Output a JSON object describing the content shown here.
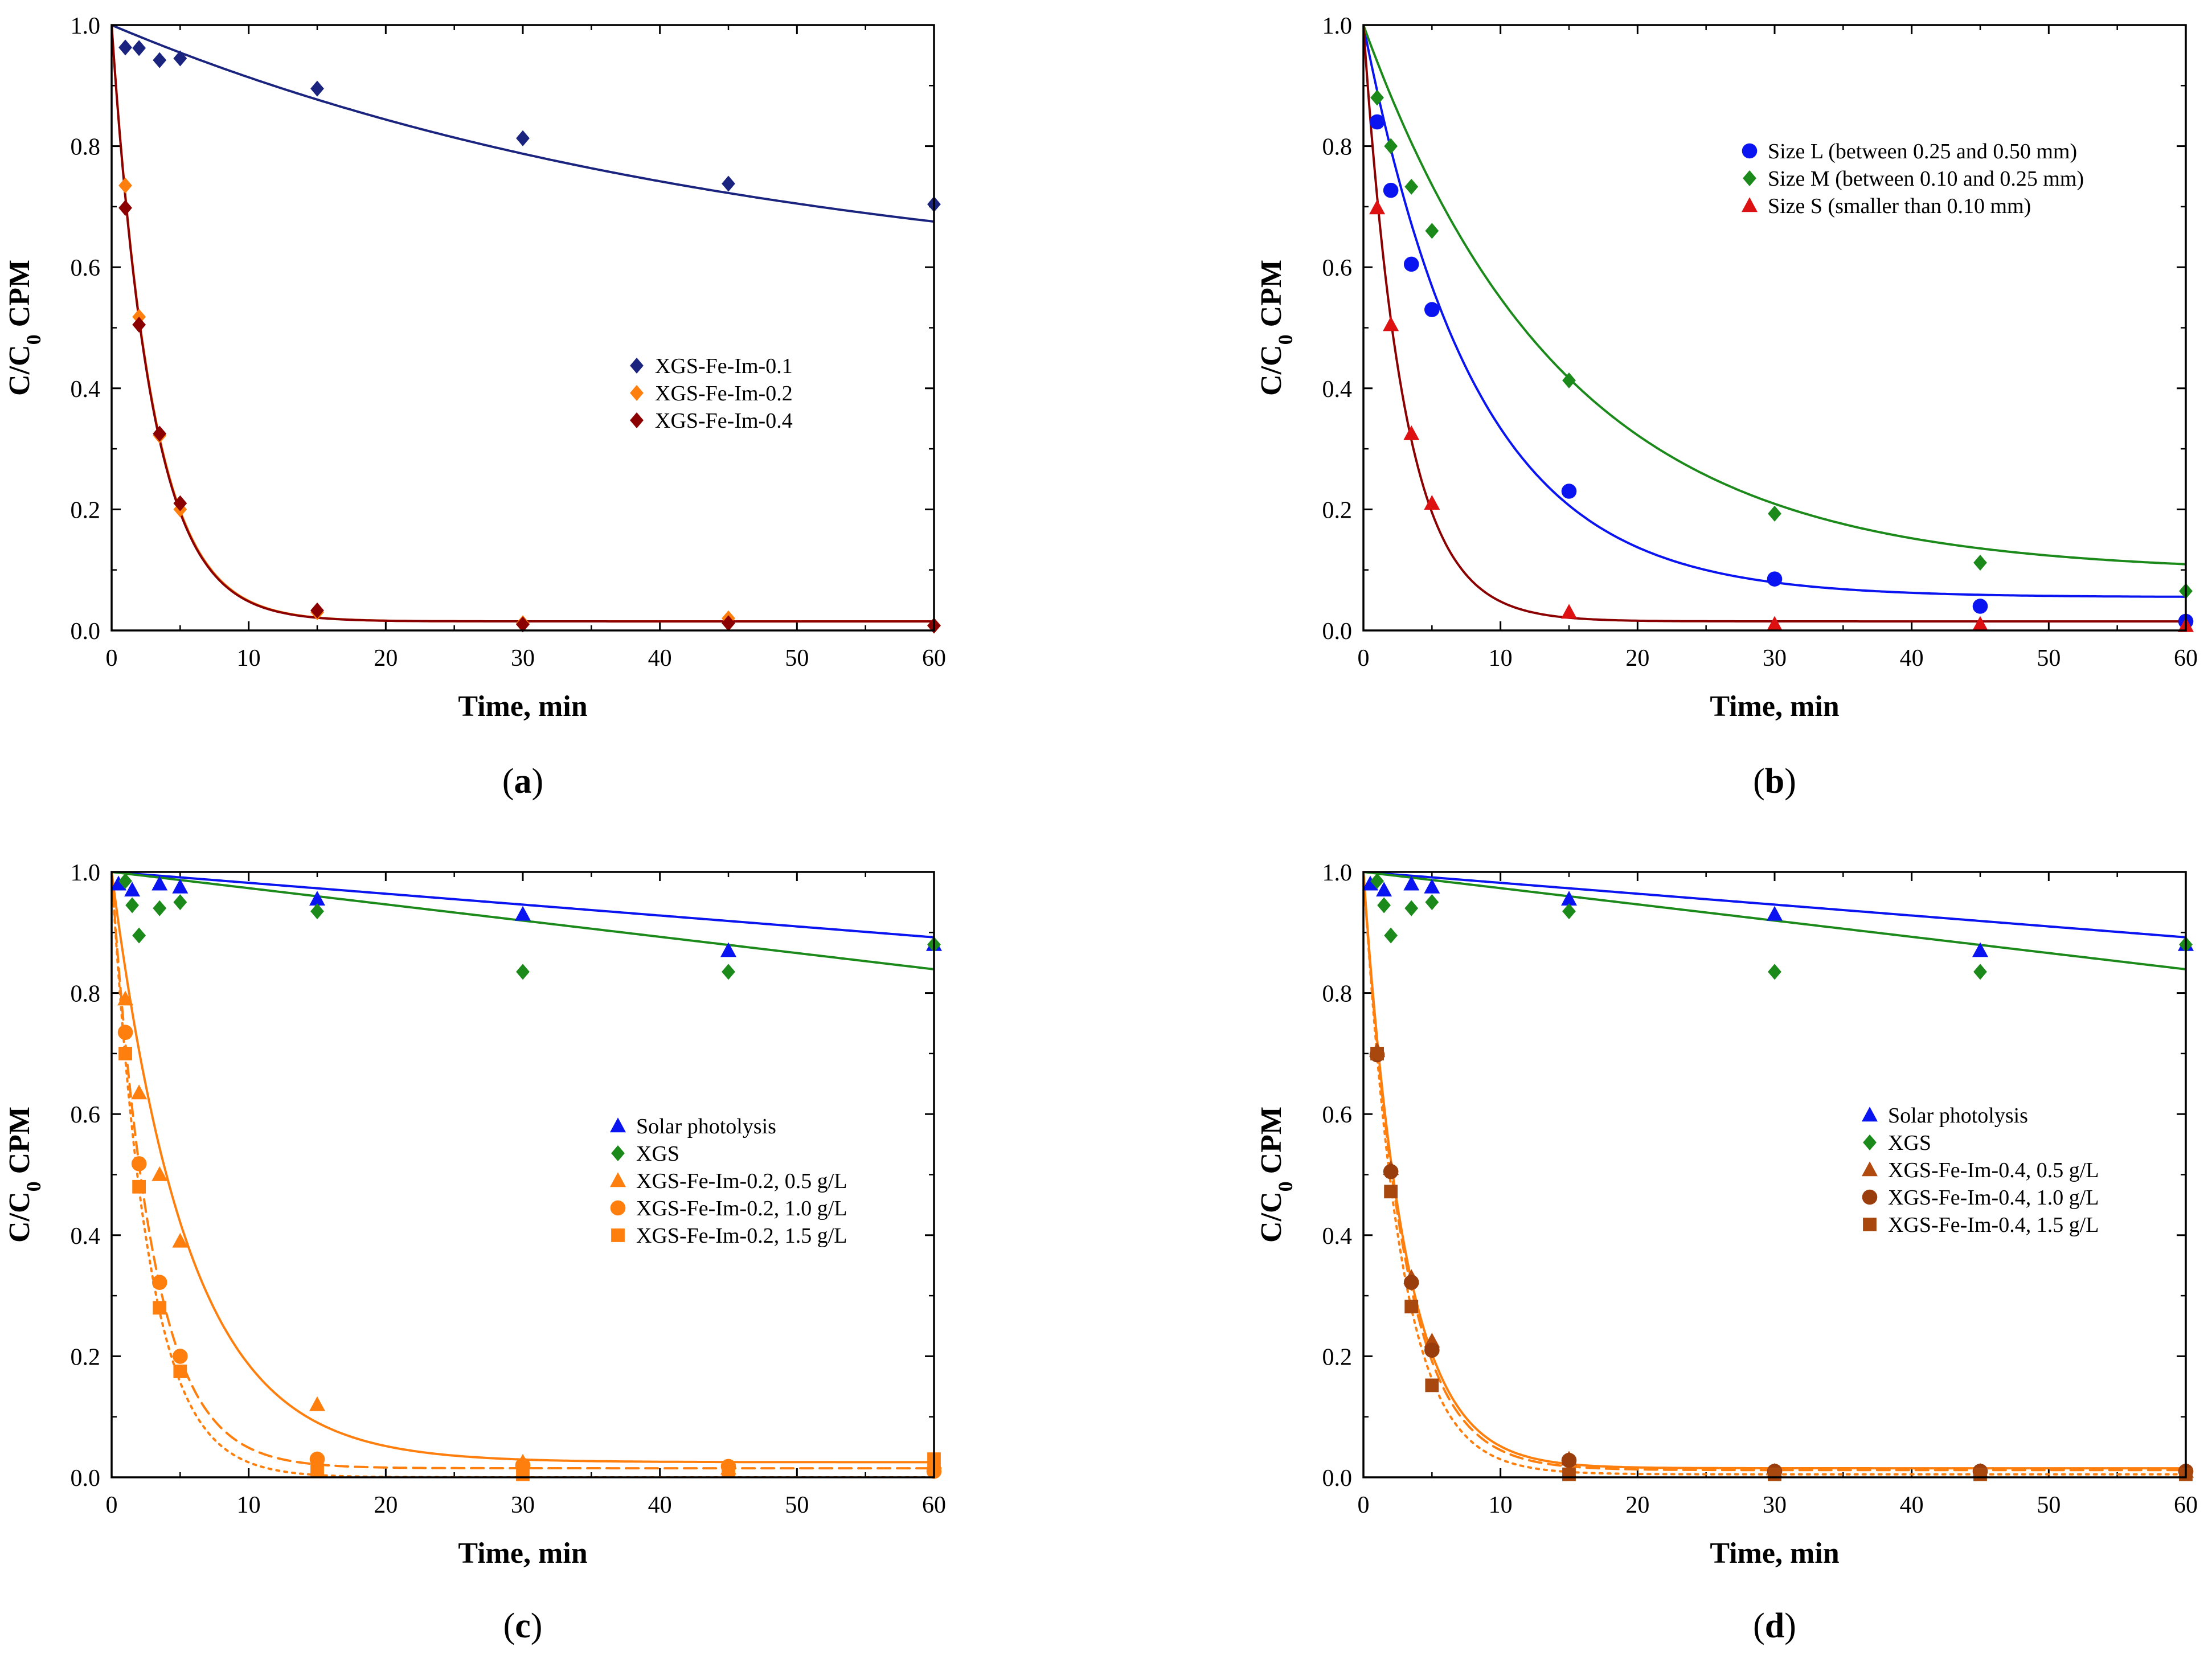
{
  "chart_data": [
    {
      "id": "a",
      "panel_label": "a",
      "type": "scatter",
      "xlabel": "Time, min",
      "ylabel_main": "C/C",
      "ylabel_sub": "0",
      "ylabel_tail": " CPM",
      "xlim": [
        0,
        60
      ],
      "ylim": [
        0,
        1.0
      ],
      "xticks": [
        "0",
        "10",
        "20",
        "30",
        "40",
        "50",
        "60"
      ],
      "yticks": [
        "0.0",
        "0.2",
        "0.4",
        "0.6",
        "0.8",
        "1.0"
      ],
      "legend": "center-right",
      "series": [
        {
          "name": "XGS-Fe-Im-0.1",
          "color": "#1a237e",
          "marker": "diamond",
          "x": [
            1,
            2,
            3.5,
            5,
            15,
            30,
            45,
            60
          ],
          "y": [
            0.963,
            0.962,
            0.942,
            0.945,
            0.895,
            0.813,
            0.738,
            0.704
          ],
          "fit": {
            "kind": "exp",
            "a": 0.45,
            "k": 0.0213,
            "b": 0.55,
            "dash": "solid"
          }
        },
        {
          "name": "XGS-Fe-Im-0.2",
          "color": "#ff7f0e",
          "marker": "diamond",
          "x": [
            1,
            2,
            3.5,
            5,
            15,
            30,
            45,
            60
          ],
          "y": [
            0.735,
            0.518,
            0.322,
            0.2,
            0.03,
            0.012,
            0.02,
            0.008
          ],
          "fit": {
            "kind": "exp",
            "a": 0.985,
            "k": 0.337,
            "b": 0.015,
            "dash": "solid"
          }
        },
        {
          "name": "XGS-Fe-Im-0.4",
          "color": "#8b0000",
          "marker": "diamond",
          "x": [
            1,
            2,
            3.5,
            5,
            15,
            30,
            45,
            60
          ],
          "y": [
            0.698,
            0.505,
            0.325,
            0.21,
            0.033,
            0.01,
            0.012,
            0.008
          ],
          "fit": {
            "kind": "exp",
            "a": 0.985,
            "k": 0.34,
            "b": 0.015,
            "dash": "solid"
          }
        }
      ]
    },
    {
      "id": "b",
      "panel_label": "b",
      "type": "scatter",
      "xlabel": "Time, min",
      "ylabel_main": "C/C",
      "ylabel_sub": "0",
      "ylabel_tail": " CPM",
      "xlim": [
        0,
        60
      ],
      "ylim": [
        0,
        1.0
      ],
      "xticks": [
        "0",
        "10",
        "20",
        "30",
        "40",
        "50",
        "60"
      ],
      "yticks": [
        "0.0",
        "0.2",
        "0.4",
        "0.6",
        "0.8",
        "1.0"
      ],
      "legend": "top-right",
      "series": [
        {
          "name": "Size L (between 0.25 and 0.50 mm)",
          "color": "#0a14f0",
          "marker": "circle",
          "x": [
            1,
            2,
            3.5,
            5,
            15,
            30,
            45,
            60
          ],
          "y": [
            0.84,
            0.727,
            0.605,
            0.53,
            0.23,
            0.085,
            0.04,
            0.015
          ],
          "fit": {
            "kind": "exp",
            "a": 0.945,
            "k": 0.122,
            "b": 0.055,
            "dash": "solid"
          }
        },
        {
          "name": "Size M (between 0.10 and 0.25 mm)",
          "color": "#1b8a1b",
          "marker": "diamond",
          "x": [
            1,
            2,
            3.5,
            5,
            15,
            30,
            45,
            60
          ],
          "y": [
            0.88,
            0.8,
            0.733,
            0.66,
            0.413,
            0.193,
            0.112,
            0.065
          ],
          "fit": {
            "kind": "exp",
            "a": 0.905,
            "k": 0.069,
            "b": 0.095,
            "dash": "solid"
          }
        },
        {
          "name": "Size S (smaller than 0.10 mm)",
          "color": "#dd1111",
          "marker": "triangle",
          "x": [
            1,
            2,
            3.5,
            5,
            15,
            30,
            45,
            60
          ],
          "y": [
            0.698,
            0.505,
            0.325,
            0.21,
            0.03,
            0.01,
            0.01,
            0.008
          ],
          "fit": {
            "kind": "exp",
            "a": 0.985,
            "k": 0.34,
            "b": 0.015,
            "dash": "solid",
            "color": "#8b0000"
          }
        }
      ]
    },
    {
      "id": "c",
      "panel_label": "c",
      "type": "scatter",
      "xlabel": "Time, min",
      "ylabel_main": "C/C",
      "ylabel_sub": "0",
      "ylabel_tail": " CPM",
      "xlim": [
        0,
        60
      ],
      "ylim": [
        0,
        1.0
      ],
      "xticks": [
        "0",
        "10",
        "20",
        "30",
        "40",
        "50",
        "60"
      ],
      "yticks": [
        "0.0",
        "0.2",
        "0.4",
        "0.6",
        "0.8",
        "1.0"
      ],
      "legend": "center-right",
      "series": [
        {
          "name": "Solar photolysis",
          "color": "#0a14f0",
          "marker": "triangle",
          "x": [
            0.5,
            1.5,
            3.5,
            5,
            15,
            30,
            45,
            60
          ],
          "y": [
            0.98,
            0.97,
            0.98,
            0.975,
            0.955,
            0.93,
            0.87,
            0.88
          ],
          "fit": {
            "kind": "linear",
            "a": 1.0,
            "m": -0.0018,
            "dash": "solid"
          }
        },
        {
          "name": "XGS",
          "color": "#1b8a1b",
          "marker": "diamond",
          "x": [
            1,
            1.5,
            2,
            3.5,
            5,
            15,
            30,
            45,
            60
          ],
          "y": [
            0.985,
            0.945,
            0.895,
            0.94,
            0.95,
            0.935,
            0.835,
            0.835,
            0.88
          ],
          "fit": {
            "kind": "linear",
            "a": 1.0,
            "m": -0.00268,
            "dash": "solid"
          }
        },
        {
          "name": "XGS-Fe-Im-0.2, 0.5 g/L",
          "color": "#ff7f0e",
          "marker": "triangle",
          "x": [
            1,
            2,
            3.5,
            5,
            15,
            30,
            45,
            60
          ],
          "y": [
            0.79,
            0.635,
            0.5,
            0.39,
            0.12,
            0.025,
            0.015,
            0.025
          ],
          "fit": {
            "kind": "exp",
            "a": 0.975,
            "k": 0.18,
            "b": 0.025,
            "dash": "solid"
          }
        },
        {
          "name": "XGS-Fe-Im-0.2, 1.0 g/L",
          "color": "#ff7f0e",
          "marker": "circle",
          "x": [
            1,
            2,
            3.5,
            5,
            15,
            30,
            45,
            60
          ],
          "y": [
            0.735,
            0.518,
            0.322,
            0.2,
            0.03,
            0.02,
            0.018,
            0.01
          ],
          "fit": {
            "kind": "exp",
            "a": 0.985,
            "k": 0.337,
            "b": 0.015,
            "dash": "dashed"
          }
        },
        {
          "name": "XGS-Fe-Im-0.2, 1.5 g/L",
          "color": "#ff7f0e",
          "marker": "square",
          "x": [
            1,
            2,
            3.5,
            5,
            15,
            30,
            45,
            60
          ],
          "y": [
            0.7,
            0.48,
            0.28,
            0.175,
            0.012,
            0.005,
            0.01,
            0.03
          ],
          "fit": {
            "kind": "exp",
            "a": 1.0,
            "k": 0.37,
            "b": 0.0,
            "dash": "dotted"
          }
        }
      ]
    },
    {
      "id": "d",
      "panel_label": "d",
      "type": "scatter",
      "xlabel": "Time, min",
      "ylabel_main": "C/C",
      "ylabel_sub": "0",
      "ylabel_tail": " CPM",
      "xlim": [
        0,
        60
      ],
      "ylim": [
        0,
        1.0
      ],
      "xticks": [
        "0",
        "10",
        "20",
        "30",
        "40",
        "50",
        "60"
      ],
      "yticks": [
        "0.0",
        "0.2",
        "0.4",
        "0.6",
        "0.8",
        "1.0"
      ],
      "legend": "center-right",
      "series": [
        {
          "name": "Solar photolysis",
          "color": "#0a14f0",
          "marker": "triangle",
          "x": [
            0.5,
            1.5,
            3.5,
            5,
            15,
            30,
            45,
            60
          ],
          "y": [
            0.98,
            0.97,
            0.98,
            0.975,
            0.955,
            0.93,
            0.87,
            0.88
          ],
          "fit": {
            "kind": "linear",
            "a": 1.0,
            "m": -0.0018,
            "dash": "solid"
          }
        },
        {
          "name": "XGS",
          "color": "#1b8a1b",
          "marker": "diamond",
          "x": [
            1,
            1.5,
            2,
            3.5,
            5,
            15,
            30,
            45,
            60
          ],
          "y": [
            0.985,
            0.945,
            0.895,
            0.94,
            0.95,
            0.935,
            0.835,
            0.835,
            0.88
          ],
          "fit": {
            "kind": "linear",
            "a": 1.0,
            "m": -0.00268,
            "dash": "solid"
          }
        },
        {
          "name": "XGS-Fe-Im-0.4, 0.5 g/L",
          "color": "#b04a0f",
          "marker": "triangle",
          "x": [
            1,
            2,
            3.5,
            5,
            15,
            30,
            45,
            60
          ],
          "y": [
            0.705,
            0.51,
            0.33,
            0.225,
            0.03,
            0.01,
            0.01,
            0.01
          ],
          "fit": {
            "kind": "exp",
            "a": 0.985,
            "k": 0.33,
            "b": 0.015,
            "dash": "solid",
            "color": "#ff7f0e"
          }
        },
        {
          "name": "XGS-Fe-Im-0.4, 1.0 g/L",
          "color": "#9a3d0c",
          "marker": "circle",
          "x": [
            1,
            2,
            3.5,
            5,
            15,
            30,
            45,
            60
          ],
          "y": [
            0.698,
            0.505,
            0.322,
            0.21,
            0.028,
            0.01,
            0.01,
            0.01
          ],
          "fit": {
            "kind": "exp",
            "a": 0.985,
            "k": 0.34,
            "b": 0.012,
            "dash": "dashed",
            "color": "#ff7f0e"
          }
        },
        {
          "name": "XGS-Fe-Im-0.4, 1.5 g/L",
          "color": "#a8480e",
          "marker": "square",
          "x": [
            1,
            2,
            3.5,
            5,
            15,
            30,
            45,
            60
          ],
          "y": [
            0.7,
            0.472,
            0.282,
            0.152,
            0.005,
            0.005,
            0.005,
            0.005
          ],
          "fit": {
            "kind": "exp",
            "a": 1.0,
            "k": 0.37,
            "b": 0.005,
            "dash": "dotted",
            "color": "#ff7f0e"
          }
        }
      ]
    }
  ]
}
